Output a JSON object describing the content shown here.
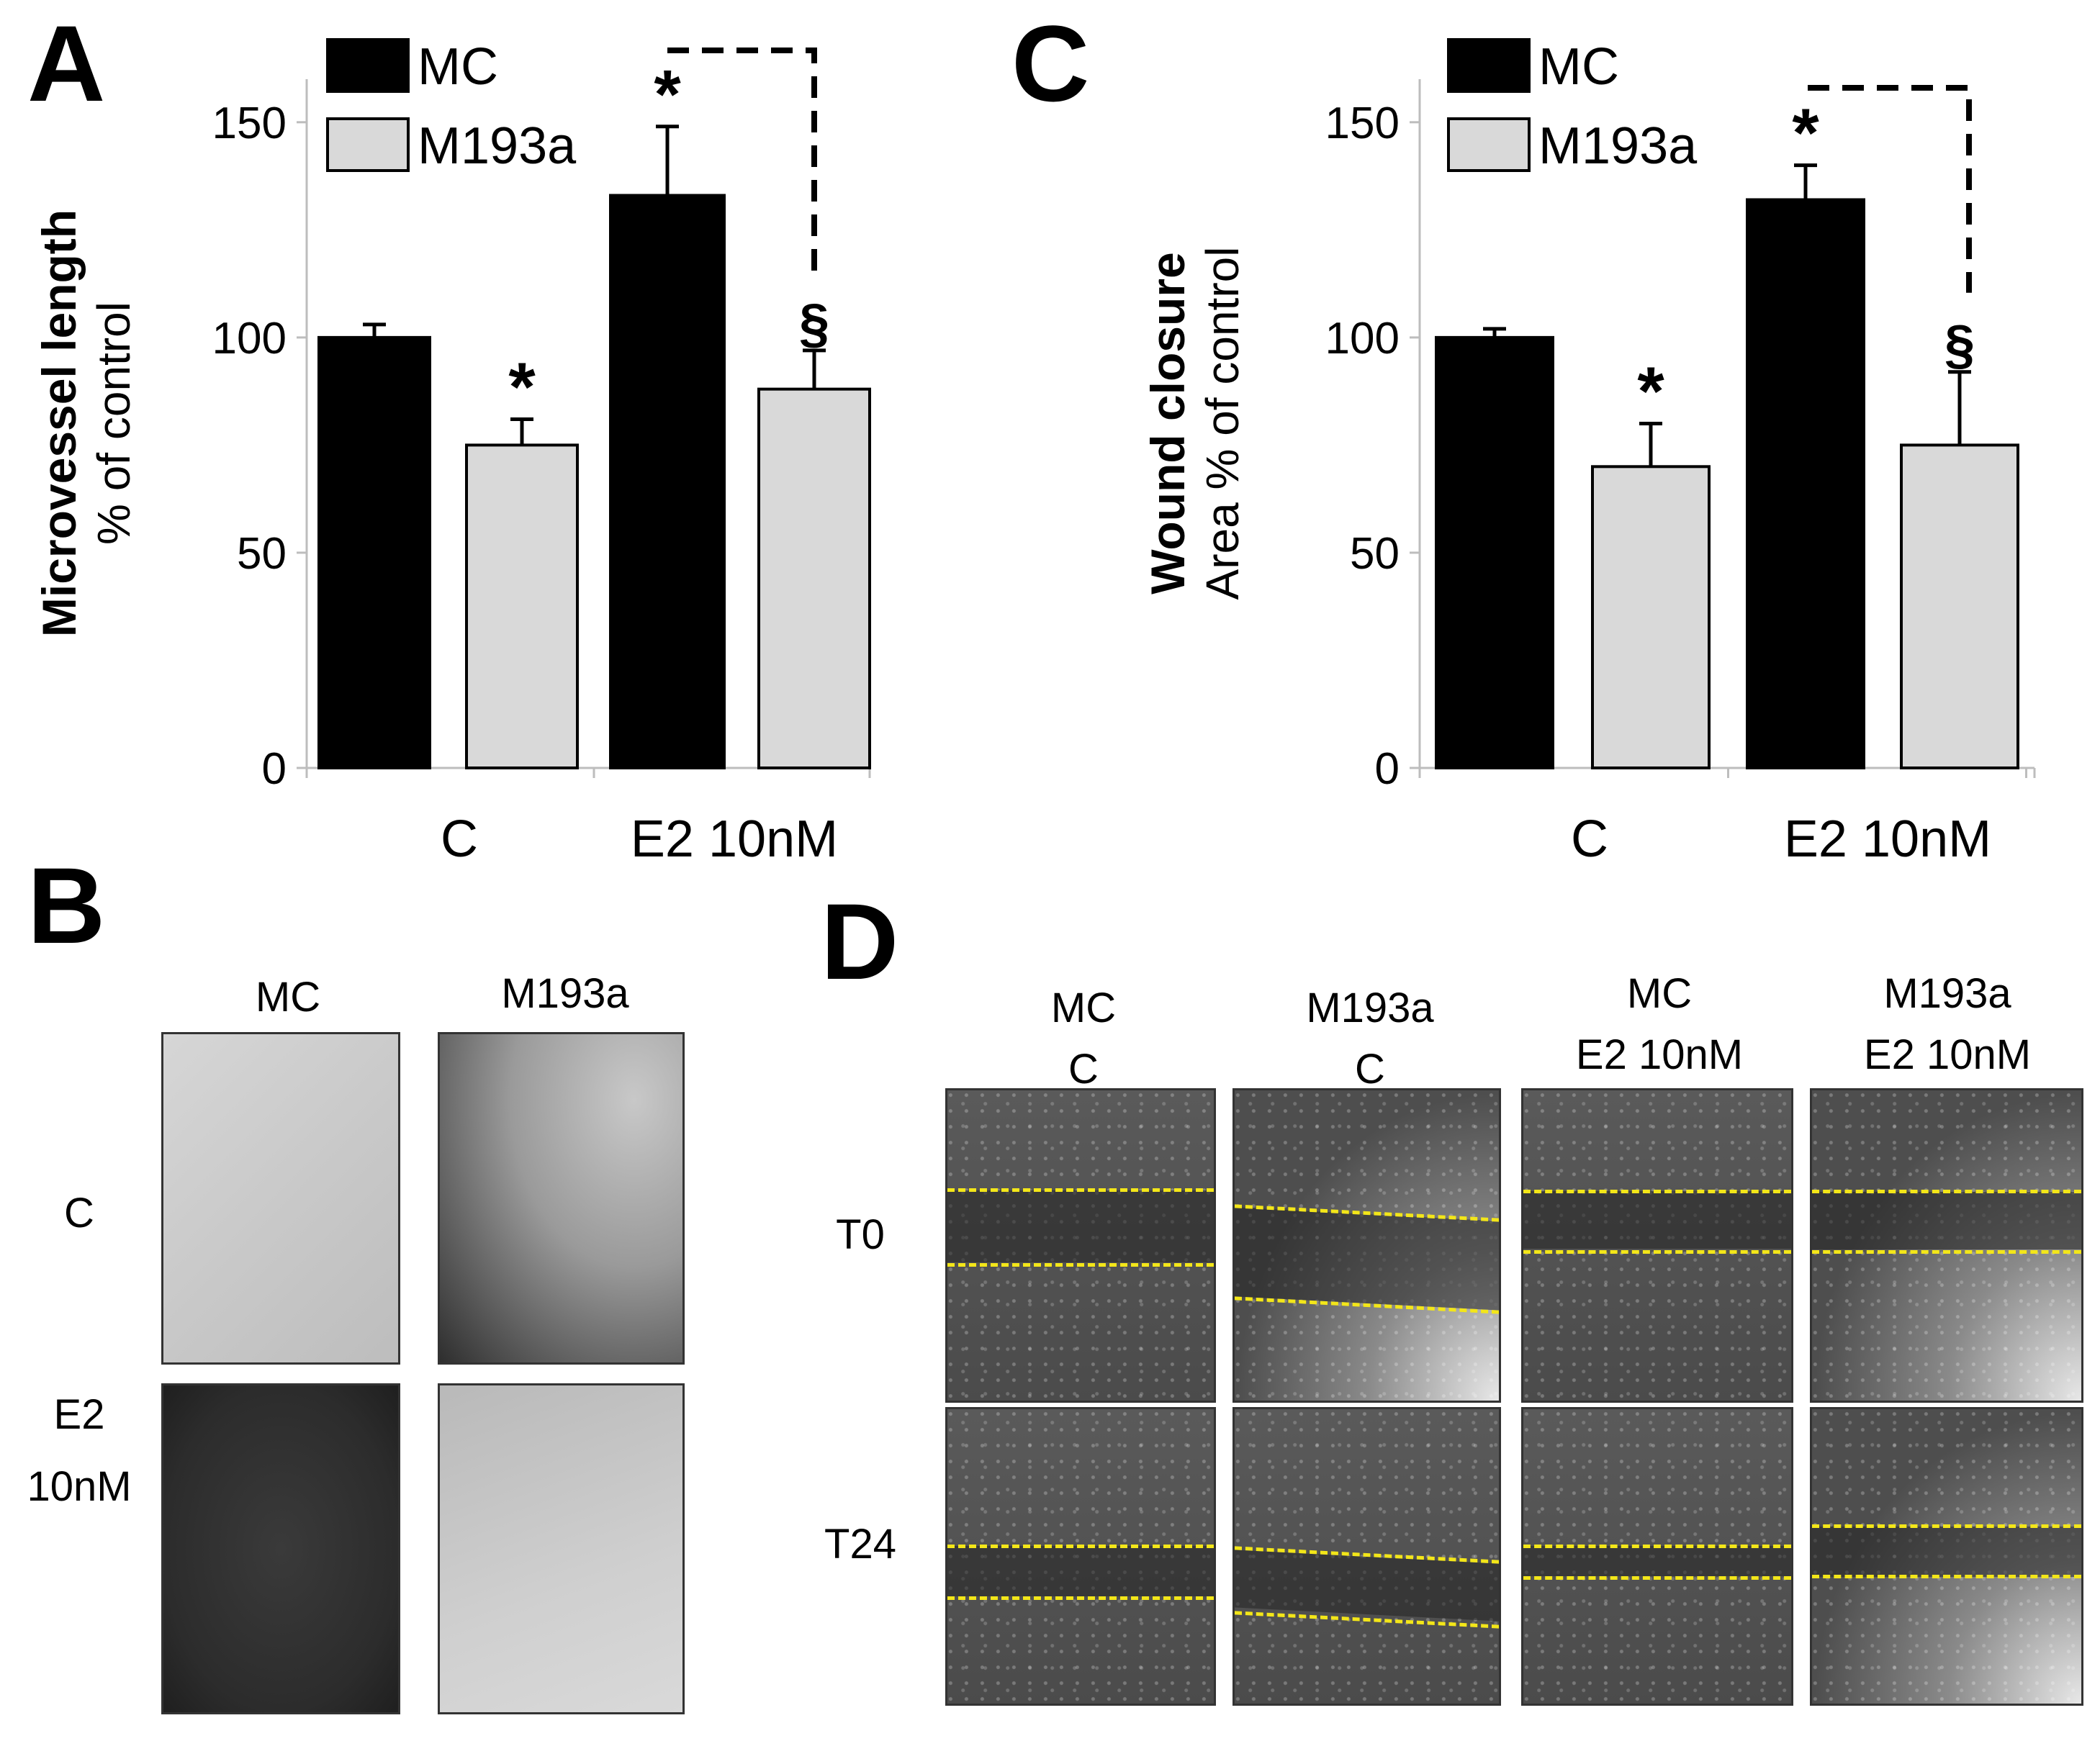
{
  "chart_data": [
    {
      "panel": "A",
      "type": "bar",
      "ylabel_bold": "Microvessel length",
      "ylabel": "% of control",
      "ylim": [
        0,
        160
      ],
      "yticks": [
        "0",
        "50",
        "100",
        "150"
      ],
      "categories": [
        "C",
        "E2 10nM"
      ],
      "series": [
        {
          "name": "MC",
          "color": "#000000",
          "values": [
            100,
            133
          ],
          "errors": [
            3,
            16
          ],
          "marks": [
            "",
            "*"
          ]
        },
        {
          "name": "M193a",
          "color": "#d9d9d9",
          "values": [
            75,
            88
          ],
          "errors": [
            6,
            9
          ],
          "marks": [
            "*",
            "§"
          ]
        }
      ]
    },
    {
      "panel": "C",
      "type": "bar",
      "ylabel_bold": "Wound closure",
      "ylabel": "Area % of control",
      "ylim": [
        0,
        160
      ],
      "yticks": [
        "0",
        "50",
        "100",
        "150"
      ],
      "categories": [
        "C",
        "E2 10nM"
      ],
      "series": [
        {
          "name": "MC",
          "color": "#000000",
          "values": [
            100,
            132
          ],
          "errors": [
            2,
            8
          ],
          "marks": [
            "",
            "*"
          ]
        },
        {
          "name": "M193a",
          "color": "#d9d9d9",
          "values": [
            70,
            75
          ],
          "errors": [
            10,
            17
          ],
          "marks": [
            "*",
            "§"
          ]
        }
      ]
    }
  ],
  "panels": {
    "a": "A",
    "b": "B",
    "c": "C",
    "d": "D"
  },
  "panel_b": {
    "cols": [
      "MC",
      "M193a"
    ],
    "rows": [
      "C",
      "E2",
      "10nM"
    ]
  },
  "panel_d": {
    "cols": [
      [
        "MC",
        "C"
      ],
      [
        "M193a",
        "C"
      ],
      [
        "MC",
        "E2 10nM"
      ],
      [
        "M193a",
        "E2 10nM"
      ]
    ],
    "rows": [
      "T0",
      "T24"
    ]
  }
}
